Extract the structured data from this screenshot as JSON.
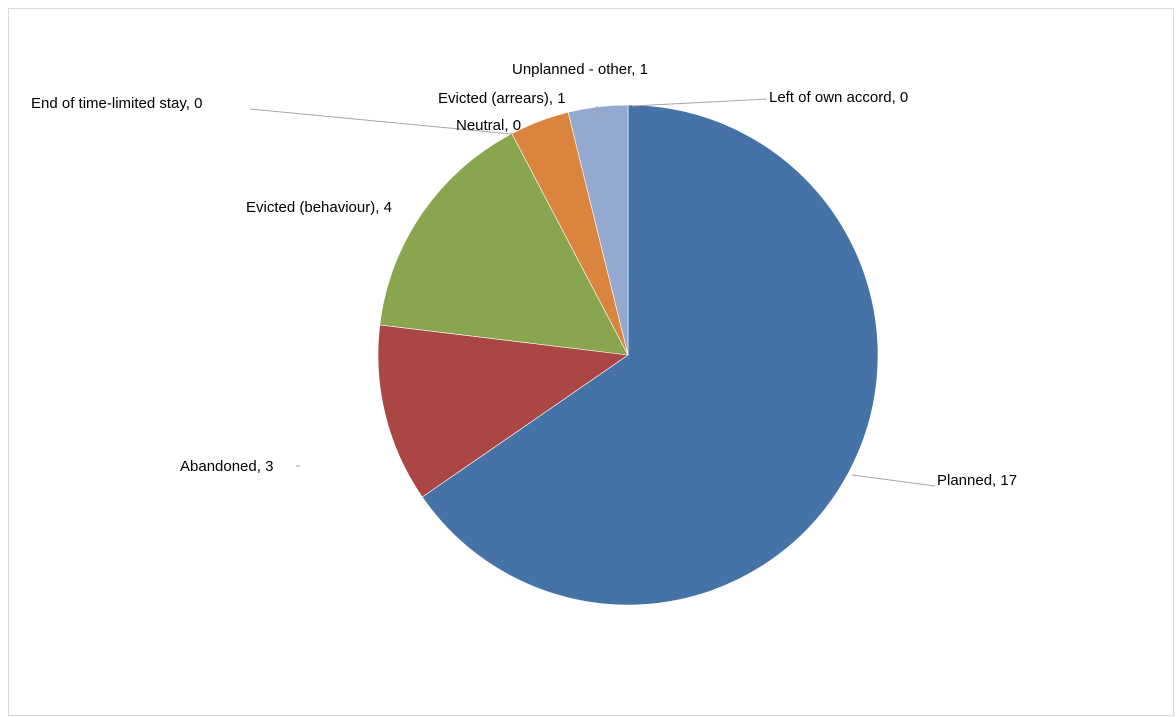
{
  "chart_data": {
    "type": "pie",
    "start_angle_deg": 0,
    "direction": "clockwise",
    "slices": [
      {
        "name": "Planned",
        "value": 17,
        "label": "Planned, 17",
        "color": "#4572A7"
      },
      {
        "name": "Left of own accord",
        "value": 0,
        "label": "Left of own accord, 0",
        "color": "#4572A7"
      },
      {
        "name": "Abandoned",
        "value": 3,
        "label": "Abandoned, 3",
        "color": "#AA4643"
      },
      {
        "name": "Evicted (behaviour)",
        "value": 4,
        "label": "Evicted (behaviour), 4",
        "color": "#89A54E"
      },
      {
        "name": "End of time-limited stay",
        "value": 0,
        "label": "End of time-limited stay, 0",
        "color": "#71588F"
      },
      {
        "name": "Neutral",
        "value": 0,
        "label": "Neutral, 0",
        "color": "#4198AF"
      },
      {
        "name": "Evicted (arrears)",
        "value": 1,
        "label": "Evicted (arrears), 1",
        "color": "#DB843D"
      },
      {
        "name": "Unplanned - other",
        "value": 1,
        "label": "Unplanned - other, 1",
        "color": "#93A9CF"
      }
    ],
    "legend": "none",
    "data_labels": "outside-with-leader-lines"
  }
}
